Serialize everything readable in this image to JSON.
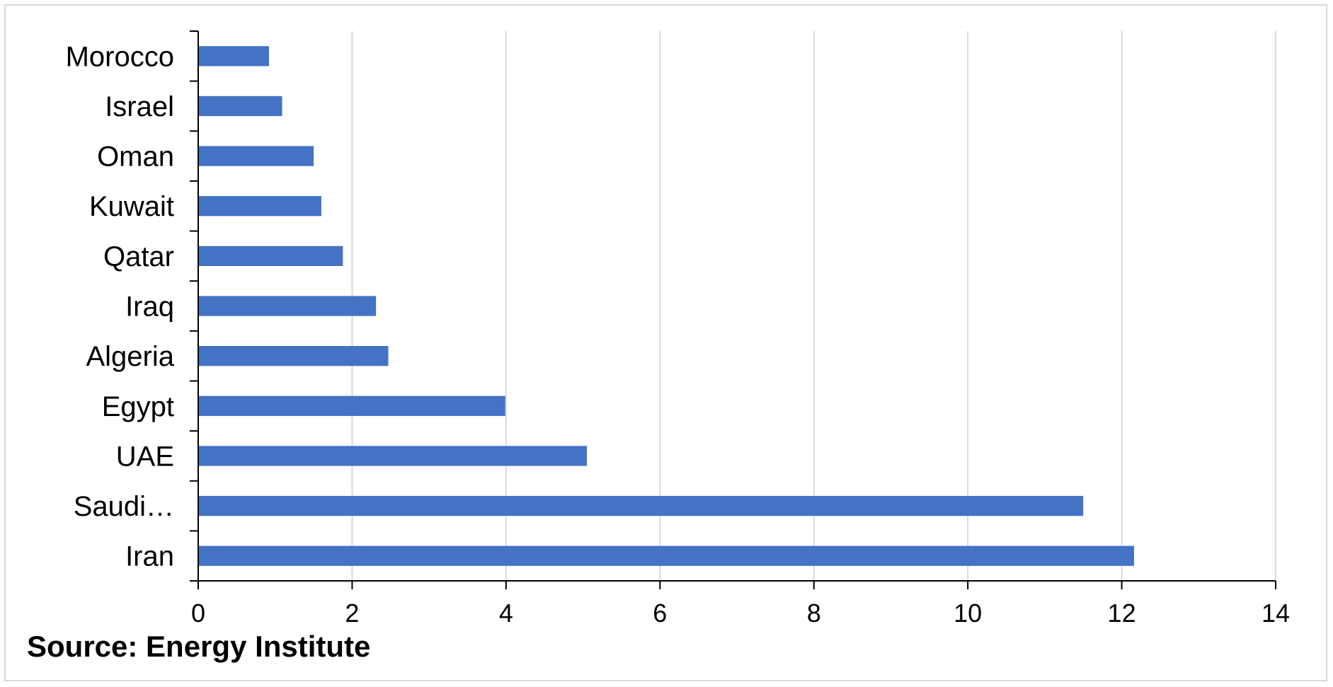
{
  "chart_data": {
    "type": "bar",
    "orientation": "horizontal",
    "categories": [
      "Morocco",
      "Israel",
      "Oman",
      "Kuwait",
      "Qatar",
      "Iraq",
      "Algeria",
      "Egypt",
      "UAE",
      "Saudi…",
      "Iran"
    ],
    "values": [
      0.92,
      1.09,
      1.5,
      1.6,
      1.88,
      2.31,
      2.47,
      3.99,
      5.05,
      11.5,
      12.16
    ],
    "xlim": [
      0,
      14
    ],
    "xticks": [
      "0",
      "2",
      "4",
      "6",
      "8",
      "10",
      "12",
      "14"
    ],
    "grid": "vertical",
    "legend": "none",
    "bar_color": "#4472c4",
    "title": "",
    "xlabel": "",
    "ylabel": ""
  },
  "source": "Source: Energy Institute"
}
